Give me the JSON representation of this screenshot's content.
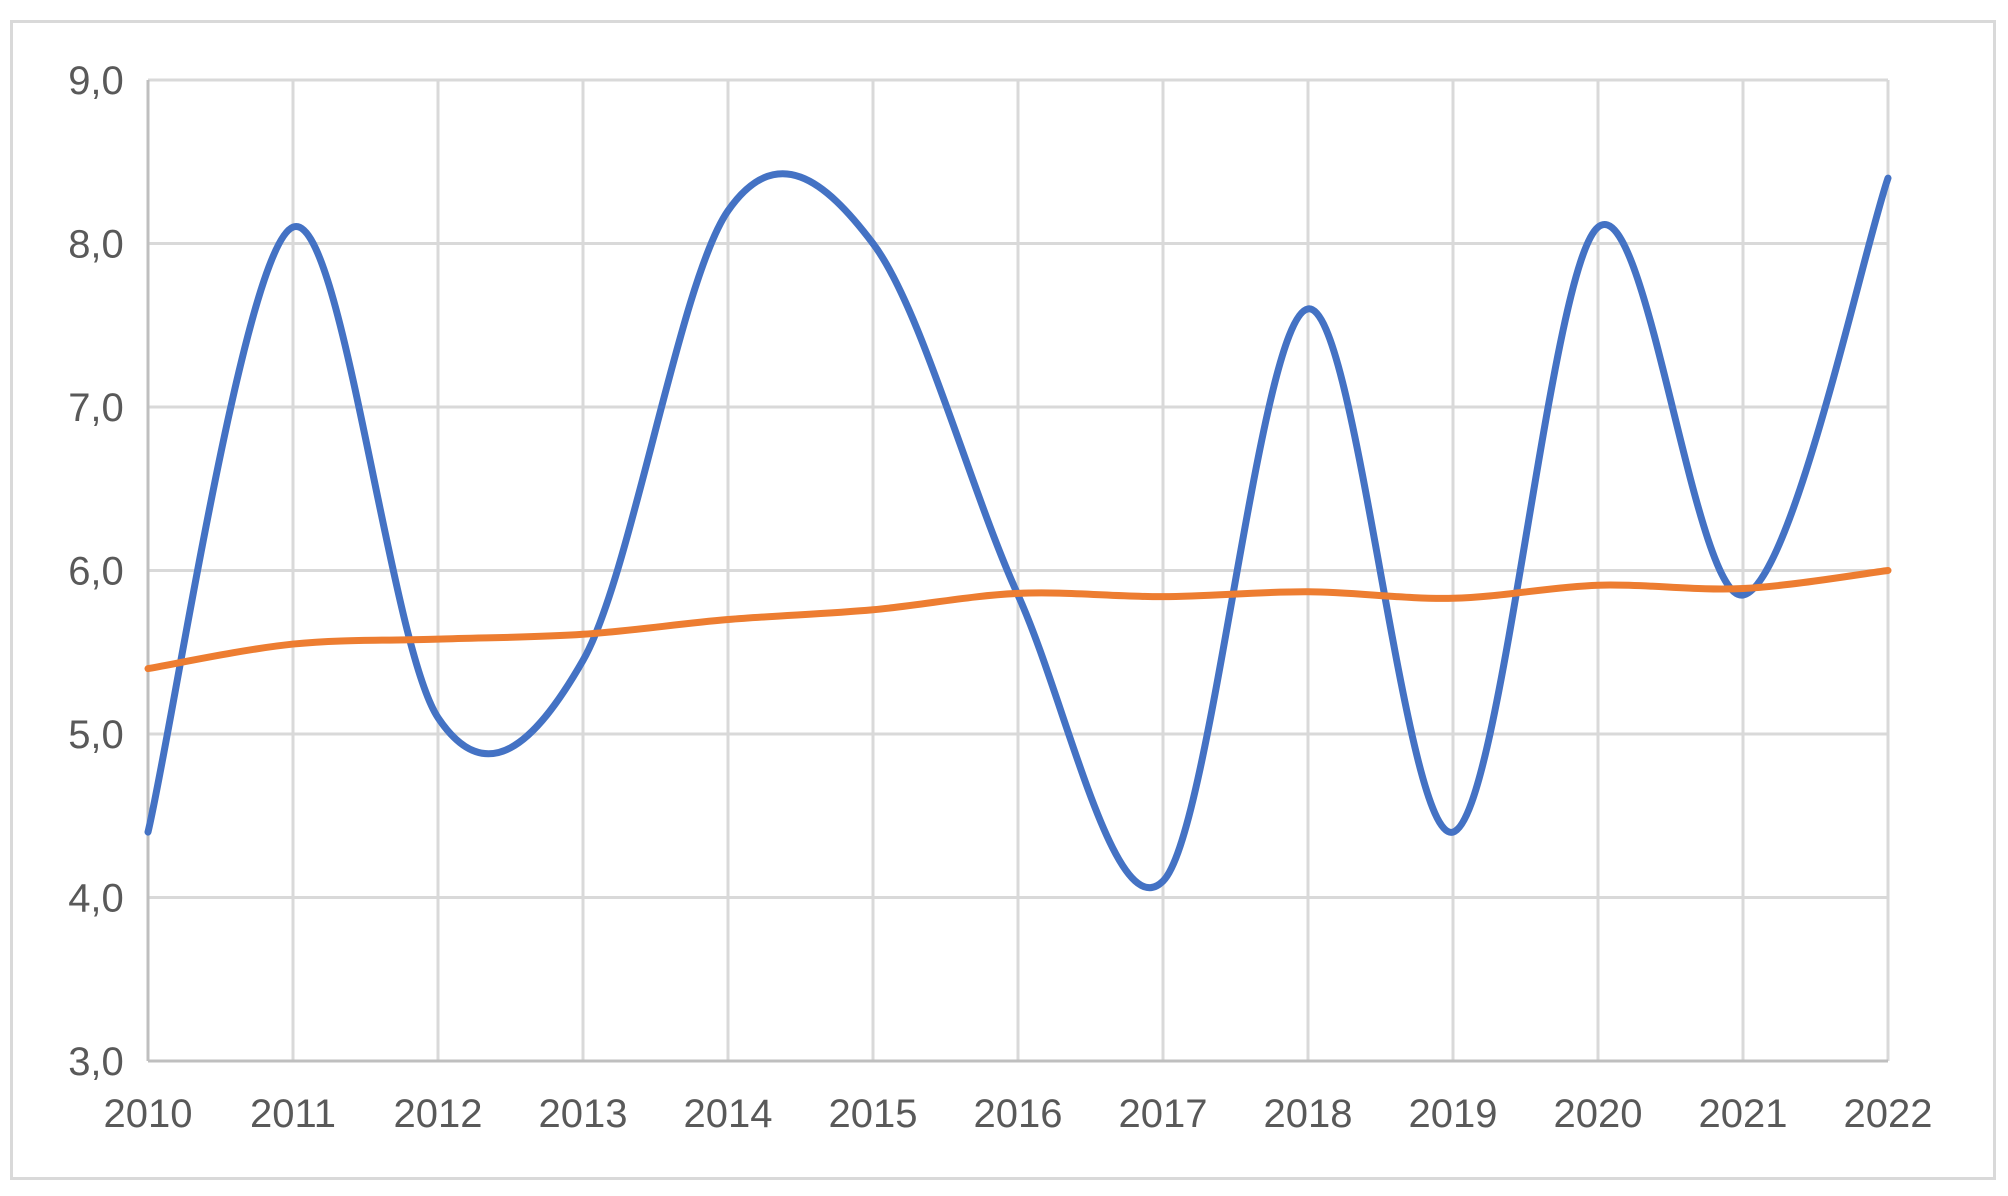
{
  "chart_data": {
    "type": "line",
    "title": "",
    "xlabel": "",
    "ylabel": "",
    "x": [
      "2010",
      "2011",
      "2012",
      "2013",
      "2014",
      "2015",
      "2016",
      "2017",
      "2018",
      "2019",
      "2020",
      "2021",
      "2022"
    ],
    "ylim": [
      3.0,
      9.0
    ],
    "yticks": [
      "3,0",
      "4,0",
      "5,0",
      "6,0",
      "7,0",
      "8,0",
      "9,0"
    ],
    "grid": true,
    "legend": "none",
    "smooth": true,
    "series": [
      {
        "color": "#4472c4",
        "values": [
          4.4,
          8.1,
          5.1,
          5.45,
          8.2,
          8.0,
          5.85,
          4.1,
          7.6,
          4.4,
          8.1,
          5.85,
          8.4
        ]
      },
      {
        "color": "#ed7d31",
        "values": [
          5.4,
          5.55,
          5.58,
          5.61,
          5.7,
          5.76,
          5.86,
          5.84,
          5.87,
          5.83,
          5.91,
          5.89,
          6.0
        ]
      }
    ],
    "colors": {
      "grid": "#d9d9d9",
      "axis": "#bfbfbf",
      "tick_text": "#595959",
      "frame": "#d9d9d9"
    }
  }
}
